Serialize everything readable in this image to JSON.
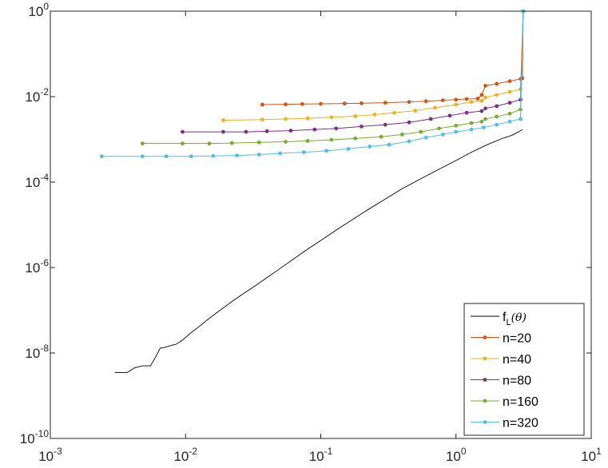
{
  "chart_data": {
    "type": "line",
    "title": "",
    "xlabel": "",
    "ylabel": "",
    "xscale": "log",
    "yscale": "log",
    "xlim": [
      0.001,
      10
    ],
    "ylim": [
      1e-10,
      1
    ],
    "grid": false,
    "legend_placement": "bottom-right",
    "x_ticks": [
      {
        "base": "10",
        "exp": "-3",
        "value": 0.001
      },
      {
        "base": "10",
        "exp": "-2",
        "value": 0.01
      },
      {
        "base": "10",
        "exp": "-1",
        "value": 0.1
      },
      {
        "base": "10",
        "exp": "0",
        "value": 1
      },
      {
        "base": "10",
        "exp": "1",
        "value": 10
      }
    ],
    "y_ticks": [
      {
        "base": "10",
        "exp": "-10",
        "value": 1e-10
      },
      {
        "base": "10",
        "exp": "-8",
        "value": 1e-08
      },
      {
        "base": "10",
        "exp": "-6",
        "value": 1e-06
      },
      {
        "base": "10",
        "exp": "-4",
        "value": 0.0001
      },
      {
        "base": "10",
        "exp": "-2",
        "value": 0.01
      },
      {
        "base": "10",
        "exp": "0",
        "value": 1
      }
    ],
    "series": [
      {
        "name": "f_L(θ)",
        "legend_main": "f",
        "legend_sub": "L",
        "legend_arg": "(θ)",
        "color": "#000000",
        "marker": false,
        "x": [
          0.003,
          0.0037,
          0.0042,
          0.0048,
          0.0055,
          0.006,
          0.0065,
          0.007,
          0.0078,
          0.0085,
          0.0095,
          0.011,
          0.013,
          0.015,
          0.018,
          0.022,
          0.027,
          0.033,
          0.04,
          0.05,
          0.065,
          0.08,
          0.1,
          0.13,
          0.17,
          0.22,
          0.3,
          0.4,
          0.55,
          0.75,
          1.0,
          1.3,
          1.7,
          2.2,
          2.6,
          2.9,
          3.1
        ],
        "y": [
          3.5e-09,
          3.5e-09,
          4.5e-09,
          5e-09,
          5e-09,
          8e-09,
          1.3e-08,
          1.35e-08,
          1.5e-08,
          1.6e-08,
          2e-08,
          3e-08,
          4.5e-08,
          6.5e-08,
          1e-07,
          1.6e-07,
          2.5e-07,
          3.8e-07,
          5.8e-07,
          9.5e-07,
          1.7e-06,
          2.7e-06,
          4.3e-06,
          7.5e-06,
          1.3e-05,
          2.2e-05,
          4e-05,
          7e-05,
          0.00012,
          0.0002,
          0.00032,
          0.0005,
          0.00075,
          0.00105,
          0.00125,
          0.0015,
          0.0017
        ]
      },
      {
        "name": "n=20",
        "color": "#D95319",
        "marker": true,
        "x": [
          0.037,
          0.055,
          0.073,
          0.1,
          0.15,
          0.2,
          0.3,
          0.45,
          0.6,
          0.8,
          1.0,
          1.2,
          1.45,
          1.55,
          1.65,
          2.0,
          2.5,
          3.0,
          3.1,
          3.14
        ],
        "y": [
          0.0065,
          0.0066,
          0.0067,
          0.0068,
          0.0069,
          0.007,
          0.0072,
          0.0075,
          0.0078,
          0.0082,
          0.0085,
          0.0088,
          0.009,
          0.011,
          0.018,
          0.02,
          0.023,
          0.026,
          0.027,
          1.0
        ]
      },
      {
        "name": "n=40",
        "color": "#EDB120",
        "marker": true,
        "x": [
          0.019,
          0.037,
          0.055,
          0.08,
          0.12,
          0.18,
          0.25,
          0.35,
          0.5,
          0.7,
          1.0,
          1.3,
          1.55,
          1.65,
          2.0,
          2.5,
          3.0,
          3.14
        ],
        "y": [
          0.0028,
          0.0029,
          0.003,
          0.0031,
          0.0033,
          0.0035,
          0.0038,
          0.0042,
          0.0047,
          0.0055,
          0.0065,
          0.0075,
          0.008,
          0.0095,
          0.011,
          0.013,
          0.015,
          1.0
        ]
      },
      {
        "name": "n=80",
        "color": "#7E2F8E",
        "marker": true,
        "x": [
          0.0095,
          0.019,
          0.028,
          0.04,
          0.06,
          0.09,
          0.13,
          0.2,
          0.3,
          0.45,
          0.65,
          0.9,
          1.2,
          1.55,
          1.65,
          2.0,
          2.5,
          3.0,
          3.14
        ],
        "y": [
          0.0015,
          0.0015,
          0.0015,
          0.00155,
          0.0016,
          0.0017,
          0.0018,
          0.002,
          0.0022,
          0.0025,
          0.003,
          0.0036,
          0.0042,
          0.0046,
          0.0053,
          0.006,
          0.0072,
          0.0085,
          1.0
        ]
      },
      {
        "name": "n=160",
        "color": "#77AC30",
        "marker": true,
        "x": [
          0.0048,
          0.0095,
          0.015,
          0.022,
          0.035,
          0.055,
          0.08,
          0.12,
          0.18,
          0.28,
          0.4,
          0.55,
          0.75,
          1.0,
          1.3,
          1.55,
          1.65,
          2.0,
          2.5,
          3.0,
          3.14
        ],
        "y": [
          0.0008,
          0.0008,
          0.0008,
          0.00082,
          0.00085,
          0.00088,
          0.00092,
          0.00098,
          0.00105,
          0.00115,
          0.0013,
          0.0015,
          0.0018,
          0.0021,
          0.0024,
          0.0026,
          0.003,
          0.0034,
          0.004,
          0.005,
          1.0
        ]
      },
      {
        "name": "n=320",
        "color": "#4DBEEE",
        "marker": true,
        "x": [
          0.0024,
          0.0048,
          0.0072,
          0.011,
          0.016,
          0.024,
          0.035,
          0.05,
          0.075,
          0.11,
          0.16,
          0.23,
          0.32,
          0.45,
          0.6,
          0.8,
          1.0,
          1.3,
          1.6,
          2.0,
          2.5,
          3.0,
          3.14
        ],
        "y": [
          0.0004,
          0.0004,
          0.0004,
          0.0004,
          0.00041,
          0.00042,
          0.00044,
          0.00047,
          0.0005,
          0.00054,
          0.0006,
          0.00068,
          0.00075,
          0.0009,
          0.0011,
          0.0013,
          0.0015,
          0.0017,
          0.0019,
          0.0022,
          0.0026,
          0.003,
          1.0
        ]
      }
    ]
  }
}
